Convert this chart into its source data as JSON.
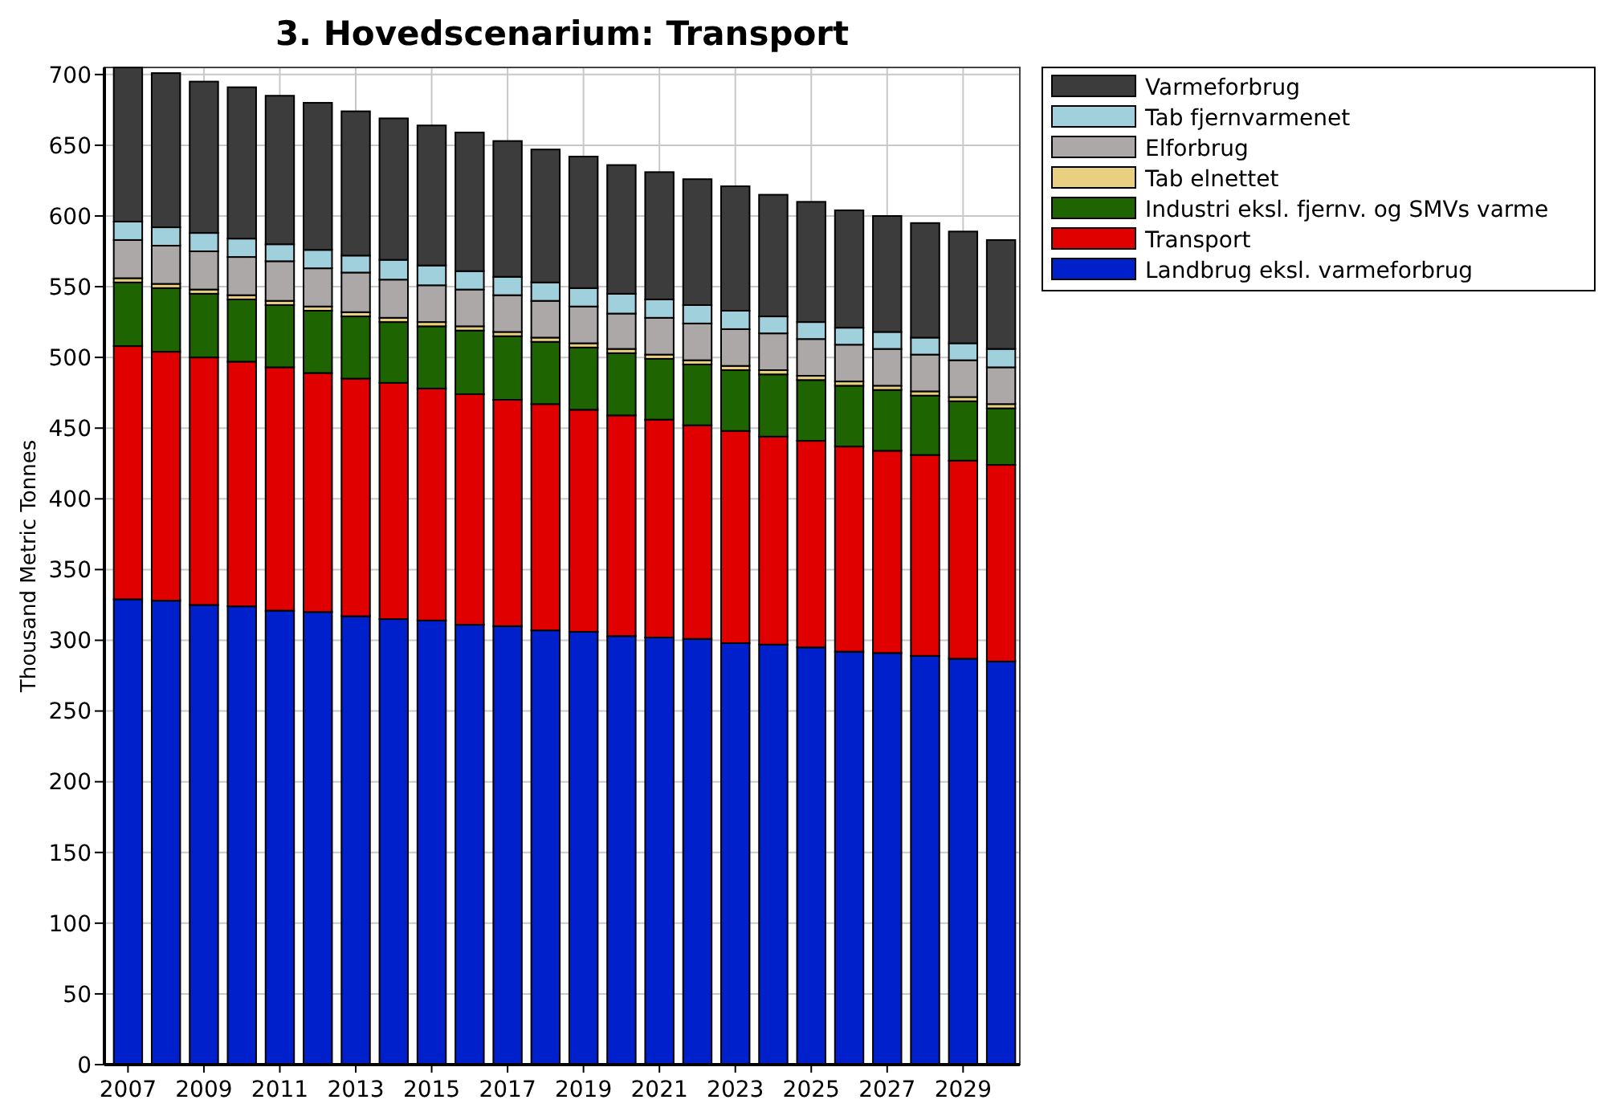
{
  "chart_data": {
    "type": "bar",
    "title": "3. Hovedscenarium: Transport",
    "ylabel": "Thousand Metric Tonnes",
    "stacked": true,
    "grid": true,
    "legend": "top right",
    "categories": [
      "2007",
      null,
      "2009",
      null,
      "2011",
      null,
      "2013",
      null,
      "2015",
      null,
      "2017",
      null,
      "2019",
      null,
      "2021",
      null,
      "2023",
      null,
      "2025",
      null,
      "2027",
      null,
      "2029",
      null
    ],
    "ylim": [
      0,
      705
    ],
    "yticks": [
      0,
      50,
      100,
      150,
      200,
      250,
      300,
      350,
      400,
      450,
      500,
      550,
      600,
      650,
      700
    ],
    "series": [
      {
        "name": "Landbrug eksl. varmeforbrug",
        "color": "#0020cc",
        "values": [
          329,
          328,
          325,
          324,
          321,
          320,
          317,
          315,
          314,
          311,
          310,
          307,
          306,
          303,
          302,
          301,
          298,
          297,
          295,
          292,
          291,
          289,
          287,
          285
        ]
      },
      {
        "name": "Transport",
        "color": "#e00000",
        "values": [
          179,
          176,
          175,
          173,
          172,
          169,
          168,
          167,
          164,
          163,
          160,
          160,
          157,
          156,
          154,
          151,
          150,
          147,
          146,
          145,
          143,
          142,
          140,
          139
        ]
      },
      {
        "name": "Industri eksl. fjernv. og SMVs varme",
        "color": "#1e6400",
        "values": [
          45,
          45,
          45,
          44,
          44,
          44,
          44,
          43,
          44,
          45,
          45,
          44,
          44,
          44,
          43,
          43,
          43,
          44,
          43,
          43,
          43,
          42,
          42,
          40
        ]
      },
      {
        "name": "Tab elnettet",
        "color": "#e8d080",
        "values": [
          3,
          3,
          3,
          3,
          3,
          3,
          3,
          3,
          3,
          3,
          3,
          3,
          3,
          3,
          3,
          3,
          3,
          3,
          3,
          3,
          3,
          3,
          3,
          3
        ]
      },
      {
        "name": "Elforbrug",
        "color": "#aca8a8",
        "values": [
          27,
          27,
          27,
          27,
          28,
          27,
          28,
          27,
          26,
          26,
          26,
          26,
          26,
          25,
          26,
          26,
          26,
          26,
          26,
          26,
          26,
          26,
          26,
          26
        ]
      },
      {
        "name": "Tab fjernvarmenet",
        "color": "#a0d0dc",
        "values": [
          13,
          13,
          13,
          13,
          12,
          13,
          12,
          14,
          14,
          13,
          13,
          13,
          13,
          14,
          13,
          13,
          13,
          12,
          12,
          12,
          12,
          12,
          12,
          13
        ]
      },
      {
        "name": "Varmeforbrug",
        "color": "#3c3c3c",
        "values": [
          109,
          109,
          107,
          107,
          105,
          104,
          102,
          100,
          99,
          98,
          96,
          94,
          93,
          91,
          90,
          89,
          88,
          86,
          85,
          83,
          82,
          81,
          79,
          77
        ]
      }
    ]
  }
}
